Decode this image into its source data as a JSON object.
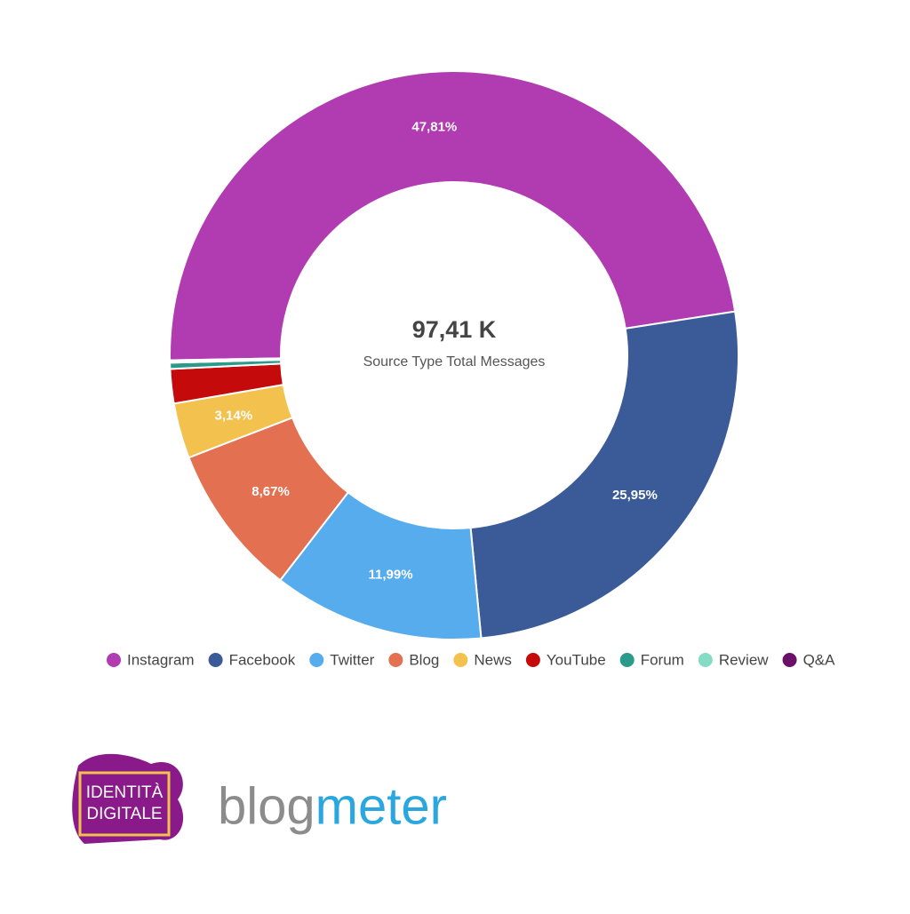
{
  "chart_data": {
    "type": "donut",
    "center_value": "97,41 K",
    "center_label": "Source Type Total Messages",
    "categories": [
      "Instagram",
      "Facebook",
      "Twitter",
      "Blog",
      "News",
      "YouTube",
      "Forum",
      "Review",
      "Q&A"
    ],
    "values": [
      47.81,
      25.95,
      11.99,
      8.67,
      3.14,
      1.95,
      0.35,
      0.1,
      0.04
    ],
    "value_labels": [
      "47,81%",
      "25,95%",
      "11,99%",
      "8,67%",
      "3,14%",
      null,
      null,
      null,
      null
    ],
    "colors": [
      "#b13bb0",
      "#3a5a98",
      "#56acec",
      "#e27051",
      "#f2c14e",
      "#c40a0a",
      "#2a9a8a",
      "#85dcc4",
      "#6a0f6a"
    ],
    "legend": "bottom"
  },
  "footer": {
    "logo_left": [
      "IDENTITÀ",
      "DIGITALE"
    ],
    "logo_right": "blogmeter"
  }
}
